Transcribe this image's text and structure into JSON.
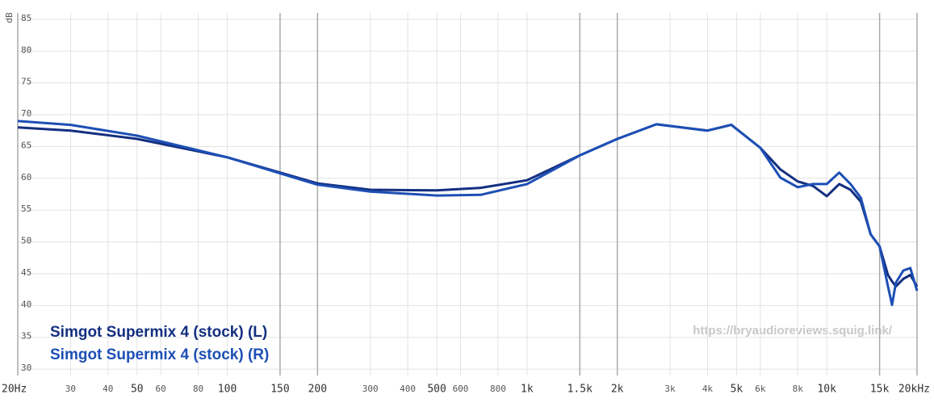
{
  "chart_data": {
    "type": "line",
    "y_label": "dB",
    "watermark": "https://bryaudioreviews.squig.link/",
    "log_x": true,
    "grid": true,
    "legend": "bottom-left",
    "xlim": [
      20,
      20000
    ],
    "ylim": [
      29,
      86
    ],
    "xticks": [
      {
        "value": 20,
        "label": "20Hz"
      },
      30,
      40,
      50,
      60,
      80,
      100,
      150,
      200,
      300,
      400,
      500,
      600,
      800,
      {
        "value": 1000,
        "label": "1k"
      },
      {
        "value": 1500,
        "label": "1.5k"
      },
      {
        "value": 2000,
        "label": "2k"
      },
      {
        "value": 3000,
        "label": "3k"
      },
      {
        "value": 4000,
        "label": "4k"
      },
      {
        "value": 5000,
        "label": "5k"
      },
      {
        "value": 6000,
        "label": "6k"
      },
      {
        "value": 8000,
        "label": "8k"
      },
      {
        "value": 10000,
        "label": "10k"
      },
      {
        "value": 15000,
        "label": "15k"
      },
      {
        "value": 20000,
        "label": "20kHz"
      }
    ],
    "yticks": [
      30,
      35,
      40,
      45,
      50,
      55,
      60,
      65,
      70,
      75,
      80,
      85
    ],
    "x": [
      20,
      30,
      50,
      100,
      200,
      300,
      500,
      700,
      1000,
      1500,
      2000,
      2700,
      4000,
      4800,
      6000,
      7000,
      8000,
      9000,
      10000,
      11000,
      12000,
      13000,
      14000,
      15000,
      16000,
      16500,
      17000,
      18000,
      19000,
      20000
    ],
    "series": [
      {
        "name": "Simgot Supermix 4 (stock) (L)",
        "color": "#132f80",
        "values": [
          68.0,
          67.5,
          66.2,
          63.3,
          59.2,
          58.2,
          58.1,
          58.5,
          59.7,
          63.6,
          66.2,
          68.5,
          67.5,
          68.4,
          64.8,
          61.4,
          59.5,
          58.8,
          57.2,
          59.1,
          58.2,
          56.3,
          51.2,
          49.3,
          44.8,
          43.8,
          43.0,
          44.2,
          44.8,
          43.0
        ]
      },
      {
        "name": "Simgot Supermix 4 (stock) (R)",
        "color": "#1d4fb5",
        "values": [
          69.0,
          68.4,
          66.7,
          63.3,
          59.0,
          57.9,
          57.3,
          57.4,
          59.1,
          63.6,
          66.2,
          68.5,
          67.5,
          68.4,
          64.8,
          60.1,
          58.6,
          59.1,
          59.1,
          60.9,
          59.1,
          56.9,
          51.2,
          49.3,
          43.0,
          40.1,
          43.6,
          45.5,
          45.9,
          42.3
        ]
      }
    ]
  }
}
